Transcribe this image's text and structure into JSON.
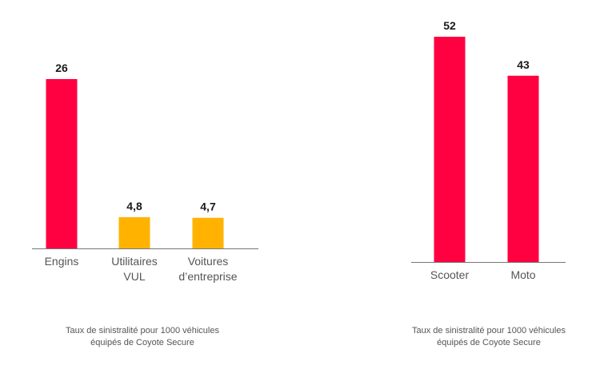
{
  "chart_data": [
    {
      "type": "bar",
      "categories": [
        [
          "Engins"
        ],
        [
          "Utilitaires",
          "VUL"
        ],
        [
          "Voitures",
          "d’entreprise"
        ]
      ],
      "values": [
        26,
        4.8,
        4.7
      ],
      "value_labels": [
        "26",
        "4,8",
        "4,7"
      ],
      "colors": [
        "#ff0040",
        "#ffb300",
        "#ffb300"
      ],
      "caption": [
        "Taux de sinistralité pour 1000 véhicules",
        "équipés de Coyote Secure"
      ],
      "ylim": [
        0,
        26
      ],
      "grid": false
    },
    {
      "type": "bar",
      "categories": [
        [
          "Scooter"
        ],
        [
          "Moto"
        ]
      ],
      "values": [
        52,
        43
      ],
      "value_labels": [
        "52",
        "43"
      ],
      "colors": [
        "#ff0040",
        "#ff0040"
      ],
      "caption": [
        "Taux de sinistralité pour 1000 véhicules",
        "équipés de Coyote Secure"
      ],
      "ylim": [
        0,
        52
      ],
      "grid": false
    }
  ]
}
